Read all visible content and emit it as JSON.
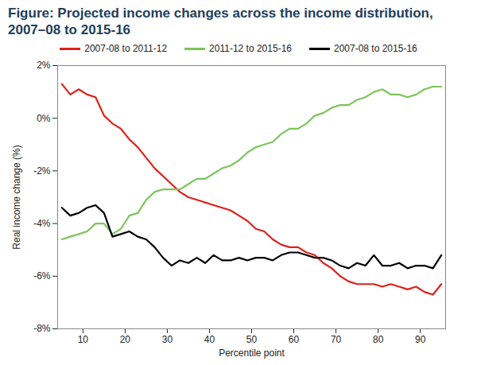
{
  "chart_data": {
    "type": "line",
    "title": "Figure: Projected income changes across the income distribution, 2007–08 to 2015-16",
    "x_label": "Percentile point",
    "y_label": "Real income change (%)",
    "x": [
      5,
      7,
      9,
      11,
      13,
      15,
      17,
      19,
      21,
      23,
      25,
      27,
      29,
      31,
      33,
      35,
      37,
      39,
      41,
      43,
      45,
      47,
      49,
      51,
      53,
      55,
      57,
      59,
      61,
      63,
      65,
      67,
      69,
      71,
      73,
      75,
      77,
      79,
      81,
      83,
      85,
      87,
      89,
      91,
      93,
      95
    ],
    "series": [
      {
        "name": "2007-08 to 2011-12",
        "color": "#e0201b",
        "values": [
          1.3,
          0.9,
          1.1,
          0.9,
          0.8,
          0.1,
          -0.2,
          -0.4,
          -0.8,
          -1.1,
          -1.5,
          -1.9,
          -2.2,
          -2.5,
          -2.8,
          -3.0,
          -3.1,
          -3.2,
          -3.3,
          -3.4,
          -3.5,
          -3.7,
          -3.9,
          -4.2,
          -4.3,
          -4.6,
          -4.8,
          -4.9,
          -4.9,
          -5.1,
          -5.2,
          -5.5,
          -5.7,
          -6.0,
          -6.2,
          -6.3,
          -6.3,
          -6.3,
          -6.4,
          -6.3,
          -6.4,
          -6.5,
          -6.4,
          -6.6,
          -6.7,
          -6.3
        ]
      },
      {
        "name": "2011-12 to 2015-16",
        "color": "#7dc45b",
        "values": [
          -4.6,
          -4.5,
          -4.4,
          -4.3,
          -4.0,
          -4.0,
          -4.4,
          -4.2,
          -3.7,
          -3.6,
          -3.1,
          -2.8,
          -2.7,
          -2.7,
          -2.7,
          -2.5,
          -2.3,
          -2.3,
          -2.1,
          -1.9,
          -1.8,
          -1.6,
          -1.3,
          -1.1,
          -1.0,
          -0.9,
          -0.6,
          -0.4,
          -0.4,
          -0.2,
          0.1,
          0.2,
          0.4,
          0.5,
          0.5,
          0.7,
          0.8,
          1.0,
          1.1,
          0.9,
          0.9,
          0.8,
          0.9,
          1.1,
          1.2,
          1.2
        ]
      },
      {
        "name": "2007-08 to 2015-16",
        "color": "#000000",
        "values": [
          -3.4,
          -3.7,
          -3.6,
          -3.4,
          -3.3,
          -3.6,
          -4.5,
          -4.4,
          -4.3,
          -4.5,
          -4.6,
          -4.9,
          -5.3,
          -5.6,
          -5.4,
          -5.5,
          -5.3,
          -5.5,
          -5.2,
          -5.4,
          -5.4,
          -5.3,
          -5.4,
          -5.3,
          -5.3,
          -5.4,
          -5.2,
          -5.1,
          -5.1,
          -5.2,
          -5.3,
          -5.3,
          -5.4,
          -5.6,
          -5.7,
          -5.5,
          -5.6,
          -5.2,
          -5.6,
          -5.6,
          -5.5,
          -5.7,
          -5.6,
          -5.6,
          -5.7,
          -5.2
        ]
      }
    ],
    "xlim": [
      4,
      96
    ],
    "xticks": [
      10,
      20,
      30,
      40,
      50,
      60,
      70,
      80,
      90
    ],
    "ylim": [
      -8,
      2
    ],
    "yticks": [
      {
        "value": 2,
        "label": "2%"
      },
      {
        "value": 0,
        "label": "0%"
      },
      {
        "value": -2,
        "label": "-2%"
      },
      {
        "value": -4,
        "label": "-4%"
      },
      {
        "value": -6,
        "label": "-6%"
      },
      {
        "value": -8,
        "label": "-8%"
      }
    ],
    "grid": false,
    "legend": "top"
  }
}
